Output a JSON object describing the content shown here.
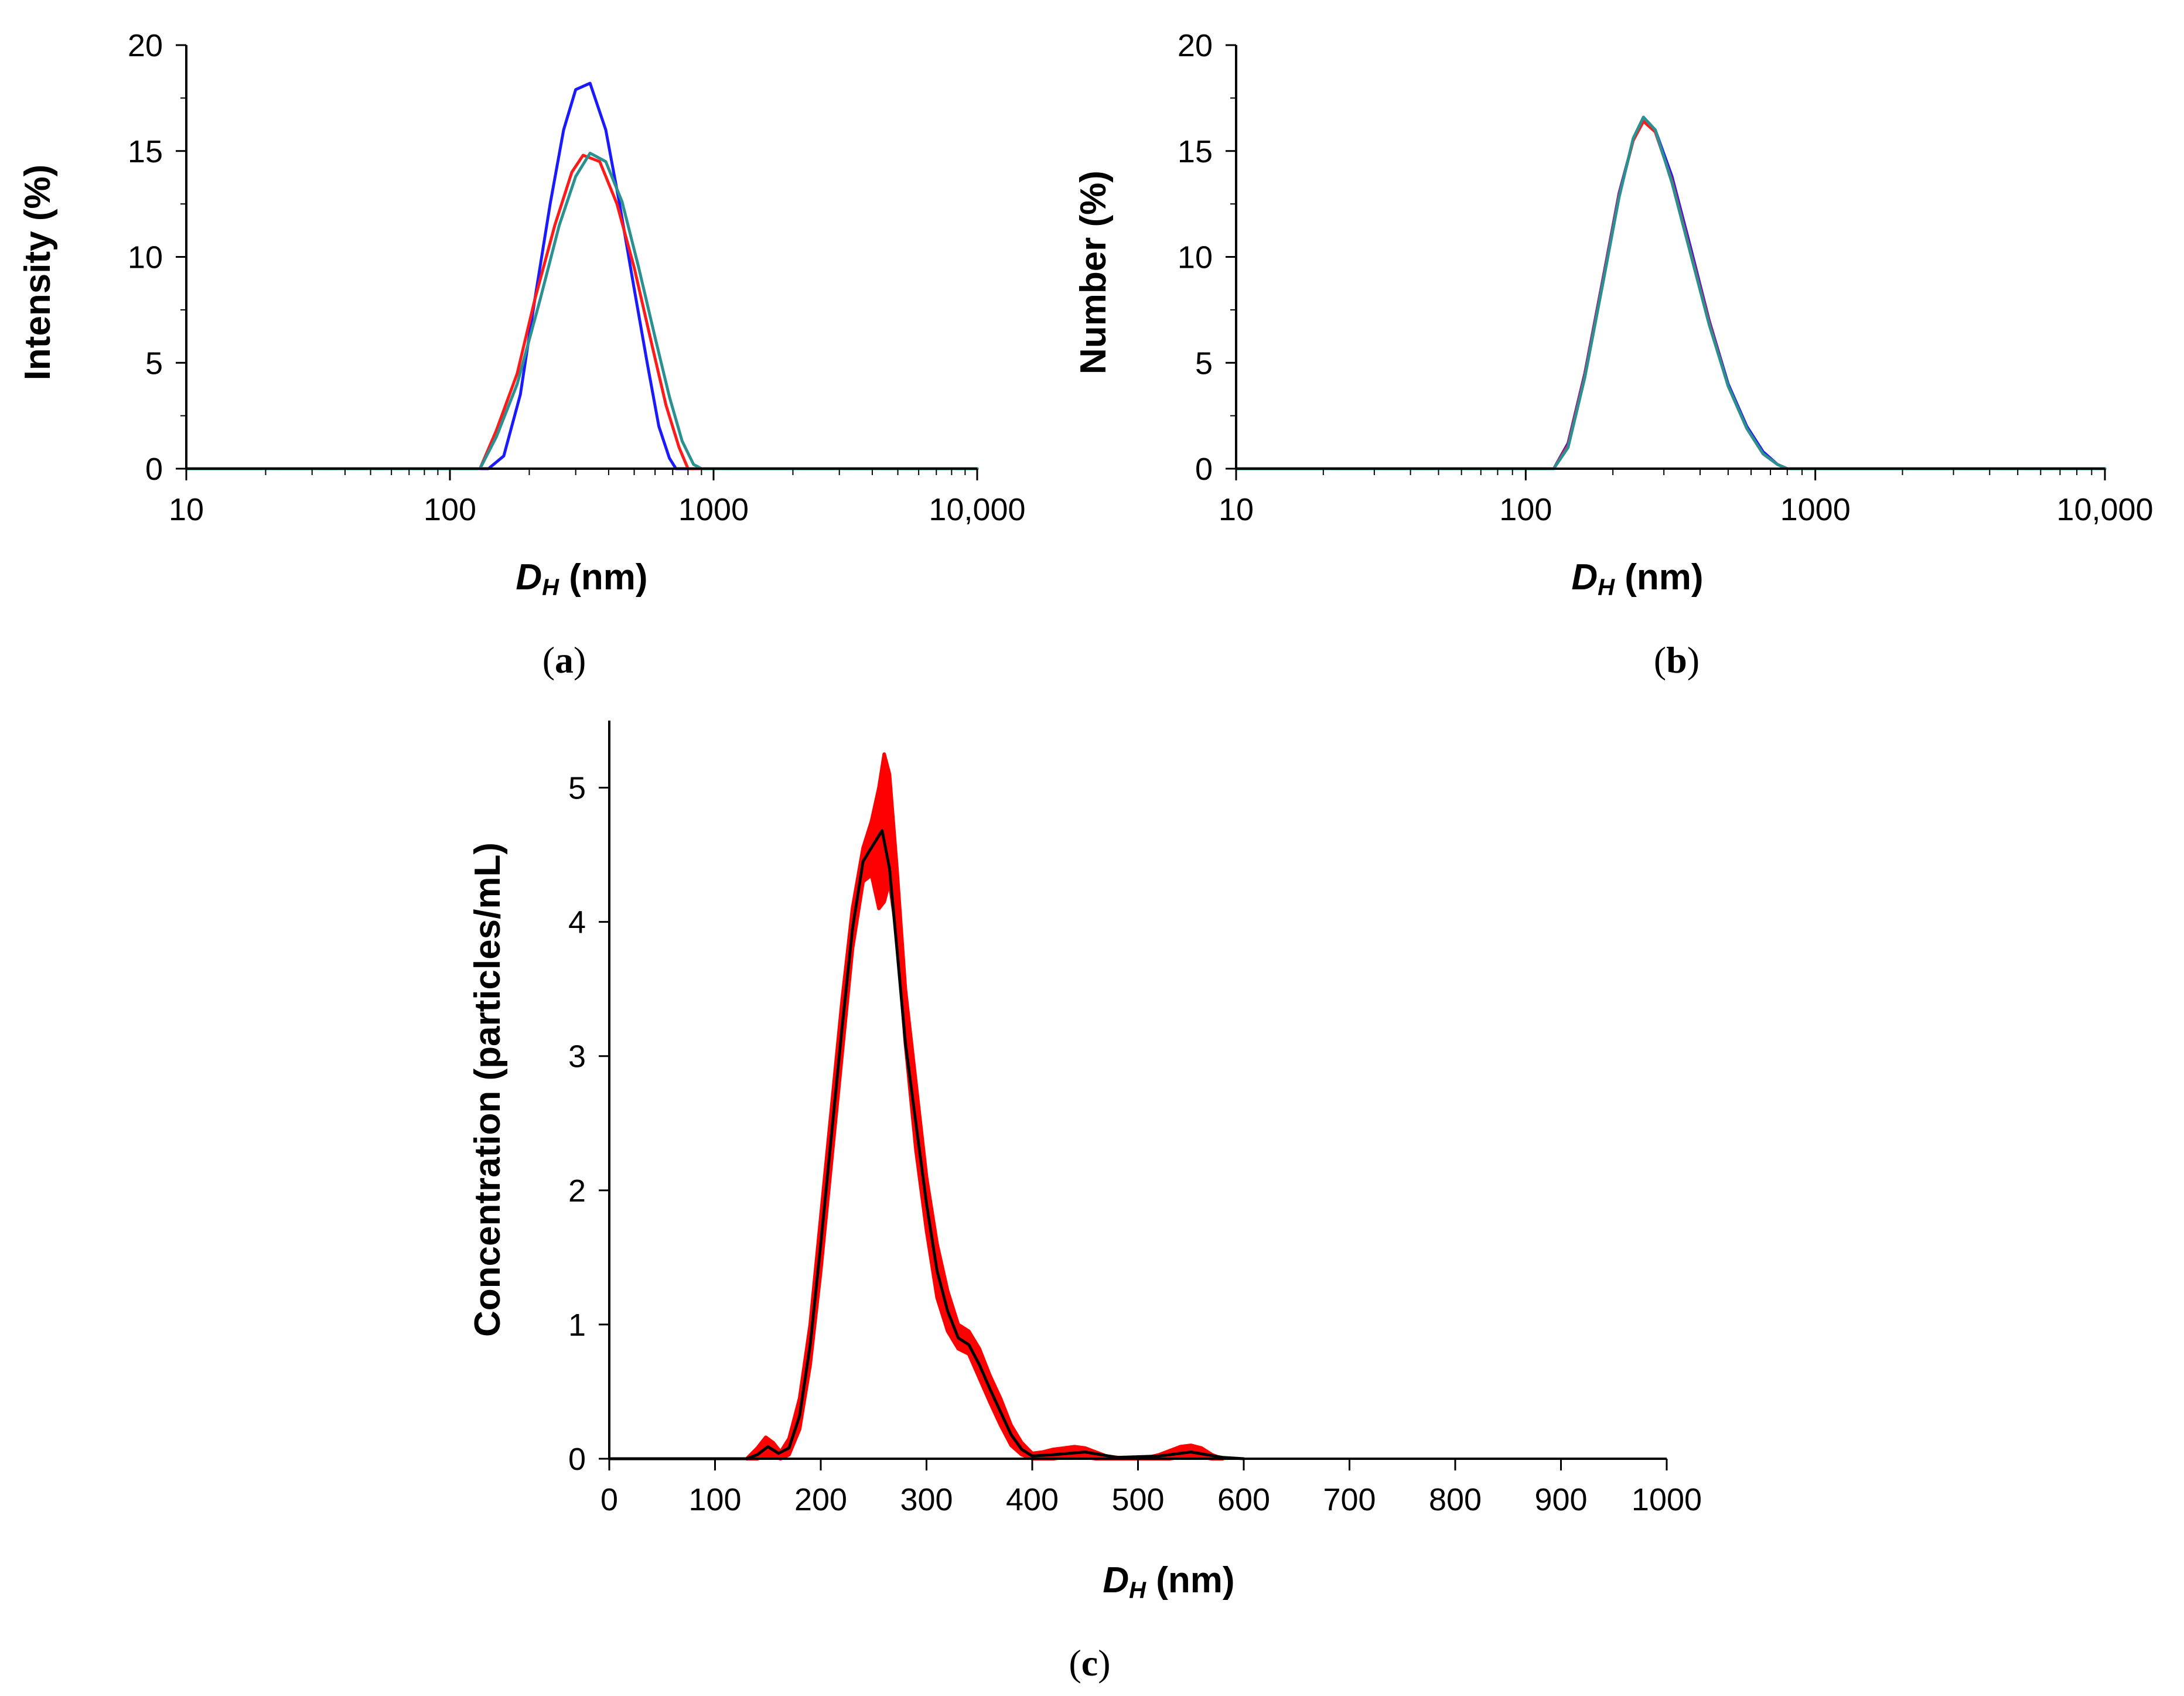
{
  "chart_data": [
    {
      "id": "a",
      "type": "line",
      "panel_label": "a",
      "xscale": "log",
      "xlim": [
        10,
        10000
      ],
      "ylim": [
        0,
        20
      ],
      "xticks": [
        10,
        100,
        1000,
        10000
      ],
      "xtick_labels": [
        "10",
        "100",
        "1000",
        "10,000"
      ],
      "yticks": [
        0,
        5,
        10,
        15,
        20
      ],
      "ytick_labels": [
        "0",
        "5",
        "10",
        "15",
        "20"
      ],
      "ylabel": "Intensity (%)",
      "xlabel_main": "D",
      "xlabel_sub": "H",
      "xlabel_unit": " (nm)",
      "series": [
        {
          "name": "blue",
          "color": "#1a1aff",
          "x": [
            10,
            140,
            160,
            185,
            210,
            240,
            270,
            300,
            340,
            390,
            440,
            500,
            560,
            620,
            680,
            720,
            10000
          ],
          "y": [
            0,
            0,
            0.6,
            3.5,
            8.0,
            12.5,
            16.0,
            17.9,
            18.2,
            16.0,
            12.5,
            8.5,
            5.0,
            2.0,
            0.5,
            0,
            0
          ]
        },
        {
          "name": "red",
          "color": "#ff1a1a",
          "x": [
            10,
            130,
            150,
            180,
            210,
            250,
            290,
            320,
            370,
            430,
            500,
            580,
            660,
            740,
            800,
            10000
          ],
          "y": [
            0,
            0,
            1.8,
            4.5,
            8.0,
            11.5,
            14.0,
            14.8,
            14.5,
            12.5,
            9.5,
            6.0,
            3.0,
            1.0,
            0,
            0
          ]
        },
        {
          "name": "green",
          "color": "#2a9090",
          "x": [
            10,
            130,
            150,
            180,
            220,
            260,
            300,
            340,
            390,
            450,
            520,
            600,
            680,
            760,
            840,
            900,
            10000
          ],
          "y": [
            0,
            0,
            1.5,
            4.0,
            8.0,
            11.5,
            13.8,
            14.9,
            14.5,
            12.6,
            9.5,
            6.2,
            3.4,
            1.3,
            0.2,
            0,
            0
          ]
        }
      ]
    },
    {
      "id": "b",
      "type": "line",
      "panel_label": "b",
      "xscale": "log",
      "xlim": [
        10,
        10000
      ],
      "ylim": [
        0,
        20
      ],
      "xticks": [
        10,
        100,
        1000,
        10000
      ],
      "xtick_labels": [
        "10",
        "100",
        "1000",
        "10,000"
      ],
      "yticks": [
        0,
        5,
        10,
        15,
        20
      ],
      "ytick_labels": [
        "0",
        "5",
        "10",
        "15",
        "20"
      ],
      "ylabel": "Number (%)",
      "xlabel_main": "D",
      "xlabel_sub": "H",
      "xlabel_unit": " (nm)",
      "series": [
        {
          "name": "blue",
          "color": "#1a1aff",
          "x": [
            10,
            125,
            140,
            160,
            185,
            210,
            235,
            255,
            280,
            320,
            370,
            430,
            500,
            580,
            660,
            740,
            800,
            850,
            10000
          ],
          "y": [
            0,
            0,
            1.2,
            4.5,
            9.0,
            13.0,
            15.5,
            16.4,
            16.0,
            13.8,
            10.5,
            7.0,
            4.0,
            2.0,
            0.8,
            0.2,
            0,
            0,
            0
          ]
        },
        {
          "name": "red",
          "color": "#ff1a1a",
          "x": [
            10,
            125,
            140,
            160,
            185,
            210,
            235,
            255,
            280,
            320,
            370,
            430,
            500,
            580,
            660,
            740,
            800,
            850,
            10000
          ],
          "y": [
            0,
            0,
            1.1,
            4.4,
            8.9,
            12.9,
            15.5,
            16.4,
            15.9,
            13.6,
            10.3,
            6.9,
            3.9,
            1.9,
            0.7,
            0.2,
            0,
            0,
            0
          ]
        },
        {
          "name": "green",
          "color": "#2a9090",
          "x": [
            10,
            125,
            140,
            160,
            185,
            210,
            235,
            255,
            280,
            320,
            370,
            430,
            500,
            580,
            660,
            740,
            800,
            850,
            10000
          ],
          "y": [
            0,
            0,
            1.0,
            4.3,
            8.8,
            12.8,
            15.6,
            16.6,
            16.0,
            13.5,
            10.2,
            6.8,
            3.9,
            1.9,
            0.7,
            0.2,
            0,
            0,
            0
          ]
        }
      ]
    },
    {
      "id": "c",
      "type": "area",
      "panel_label": "c",
      "xscale": "linear",
      "xlim": [
        0,
        1000
      ],
      "ylim": [
        0,
        5.5
      ],
      "xticks": [
        0,
        100,
        200,
        300,
        400,
        500,
        600,
        700,
        800,
        900,
        1000
      ],
      "xtick_labels": [
        "0",
        "100",
        "200",
        "300",
        "400",
        "500",
        "600",
        "700",
        "800",
        "900",
        "1000"
      ],
      "yticks": [
        0,
        1,
        2,
        3,
        4,
        5
      ],
      "ytick_labels": [
        "0",
        "1",
        "2",
        "3",
        "4",
        "5"
      ],
      "ylabel": "Concentration (particles/mL)",
      "xlabel_main": "D",
      "xlabel_sub": "H",
      "xlabel_unit": " (nm)",
      "band": {
        "color": "#ff0000",
        "x": [
          130,
          140,
          148,
          155,
          162,
          170,
          180,
          190,
          200,
          210,
          220,
          230,
          240,
          248,
          255,
          260,
          265,
          272,
          280,
          290,
          300,
          310,
          320,
          330,
          340,
          350,
          360,
          370,
          380,
          390,
          400,
          410,
          420,
          430,
          440,
          450,
          460,
          470,
          480,
          490,
          500,
          510,
          520,
          530,
          540,
          550,
          560,
          570,
          580
        ],
        "upper": [
          0,
          0.08,
          0.16,
          0.12,
          0.05,
          0.15,
          0.45,
          1.0,
          1.8,
          2.6,
          3.4,
          4.1,
          4.55,
          4.75,
          5.0,
          5.25,
          5.1,
          4.4,
          3.5,
          2.8,
          2.1,
          1.6,
          1.25,
          1.0,
          0.95,
          0.82,
          0.62,
          0.45,
          0.25,
          0.12,
          0.04,
          0.05,
          0.07,
          0.08,
          0.09,
          0.08,
          0.05,
          0.02,
          0.01,
          0.0,
          0.0,
          0.01,
          0.03,
          0.06,
          0.09,
          0.1,
          0.08,
          0.03,
          0
        ],
        "lower": [
          0,
          0.0,
          0.02,
          0.02,
          0.0,
          0.03,
          0.22,
          0.7,
          1.4,
          2.2,
          3.0,
          3.8,
          4.3,
          4.35,
          4.1,
          4.15,
          4.3,
          3.9,
          3.1,
          2.3,
          1.7,
          1.2,
          0.95,
          0.82,
          0.78,
          0.6,
          0.42,
          0.25,
          0.1,
          0.03,
          0.0,
          0.0,
          0.0,
          0.01,
          0.01,
          0.01,
          0.0,
          0.0,
          0.0,
          0.0,
          0.0,
          0.0,
          0.0,
          0.0,
          0.01,
          0.01,
          0.01,
          0.0,
          0
        ]
      },
      "series": [
        {
          "name": "mean",
          "color": "#000000",
          "x": [
            0,
            100,
            130,
            140,
            150,
            160,
            170,
            180,
            190,
            200,
            210,
            220,
            230,
            240,
            250,
            258,
            265,
            272,
            280,
            290,
            300,
            310,
            320,
            330,
            340,
            350,
            360,
            370,
            380,
            390,
            400,
            420,
            450,
            480,
            520,
            550,
            580,
            600
          ],
          "y": [
            0,
            0,
            0,
            0.03,
            0.09,
            0.04,
            0.08,
            0.32,
            0.85,
            1.6,
            2.4,
            3.2,
            3.95,
            4.45,
            4.58,
            4.68,
            4.4,
            3.8,
            3.1,
            2.5,
            1.9,
            1.4,
            1.1,
            0.9,
            0.85,
            0.7,
            0.52,
            0.35,
            0.18,
            0.07,
            0.02,
            0.03,
            0.05,
            0.01,
            0.02,
            0.05,
            0.01,
            0
          ]
        }
      ]
    }
  ]
}
